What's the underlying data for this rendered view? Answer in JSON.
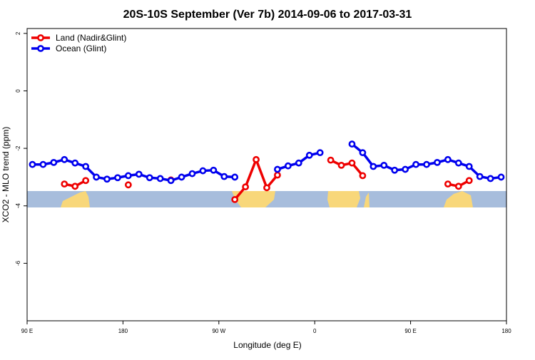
{
  "chart_data": {
    "type": "line",
    "title": "20S-10S September (Ver 7b)   2014-09-06 to 2017-03-31",
    "x_label": "Longitude (deg E)",
    "y_label": "XCO2 - MLO trend (ppm)",
    "x": [
      95,
      105,
      115,
      125,
      135,
      145,
      155,
      165,
      175,
      185,
      195,
      205,
      215,
      225,
      235,
      245,
      255,
      265,
      275,
      285,
      295,
      305,
      315,
      325,
      335,
      345,
      355,
      365,
      375,
      385,
      395,
      405,
      415,
      425,
      435,
      445,
      455,
      465,
      475,
      485,
      495,
      505,
      515,
      525,
      535
    ],
    "series": [
      {
        "name": "Land (Nadir&Glint)",
        "color": "#ee0000",
        "values": [
          null,
          null,
          null,
          -3.24,
          -3.32,
          -3.12,
          null,
          null,
          null,
          -3.27,
          null,
          null,
          null,
          -3.1,
          null,
          null,
          null,
          null,
          null,
          -3.78,
          -3.34,
          -2.39,
          -3.37,
          -2.93,
          null,
          null,
          null,
          null,
          -2.41,
          -2.59,
          -2.51,
          -2.95,
          null,
          null,
          null,
          null,
          null,
          null,
          null,
          -3.24,
          -3.32,
          -3.12,
          null,
          null,
          null
        ]
      },
      {
        "name": "Ocean (Glint)",
        "color": "#0000ee",
        "values": [
          -2.56,
          -2.56,
          -2.49,
          -2.39,
          -2.51,
          -2.63,
          -3.0,
          -3.07,
          -3.02,
          -2.95,
          -2.9,
          -3.02,
          -3.05,
          -3.12,
          -3.0,
          -2.88,
          -2.78,
          -2.76,
          -2.98,
          -3.0,
          null,
          null,
          null,
          -2.73,
          -2.61,
          -2.51,
          -2.24,
          -2.15,
          null,
          null,
          -1.85,
          -2.15,
          -2.63,
          -2.59,
          -2.76,
          -2.73,
          -2.56,
          -2.56,
          -2.49,
          -2.39,
          -2.51,
          -2.63,
          -2.98,
          -3.05,
          -3.0
        ]
      }
    ],
    "xlim": [
      90,
      540
    ],
    "xticks": [
      {
        "value": 90,
        "label": "90 E"
      },
      180,
      {
        "value": 270,
        "label": "90 W"
      },
      {
        "value": 360,
        "label": "0"
      },
      {
        "value": 450,
        "label": "90 E"
      },
      {
        "value": 540,
        "label": "180"
      }
    ],
    "ylim": [
      -8,
      2.17
    ],
    "yticks": [
      2,
      0,
      -2,
      -4,
      -6
    ],
    "legend": "top-left"
  }
}
